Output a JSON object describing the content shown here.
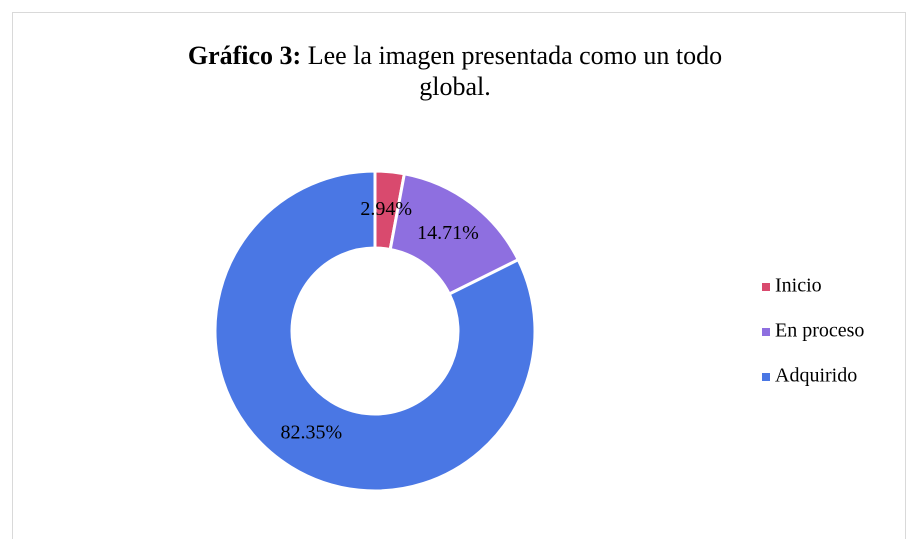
{
  "chart_data": {
    "type": "donut",
    "title_bold": "Gráfico 3:",
    "title": "Lee la imagen presentada como un todo global.",
    "categories": [
      "Inicio",
      "En proceso",
      "Adquirido"
    ],
    "values": [
      2.94,
      14.71,
      82.35
    ],
    "value_labels": [
      "2.94%",
      "14.71%",
      "82.35%"
    ],
    "colors": [
      "#d94a6e",
      "#8e6fe0",
      "#4a77e4"
    ],
    "legend": "right"
  }
}
